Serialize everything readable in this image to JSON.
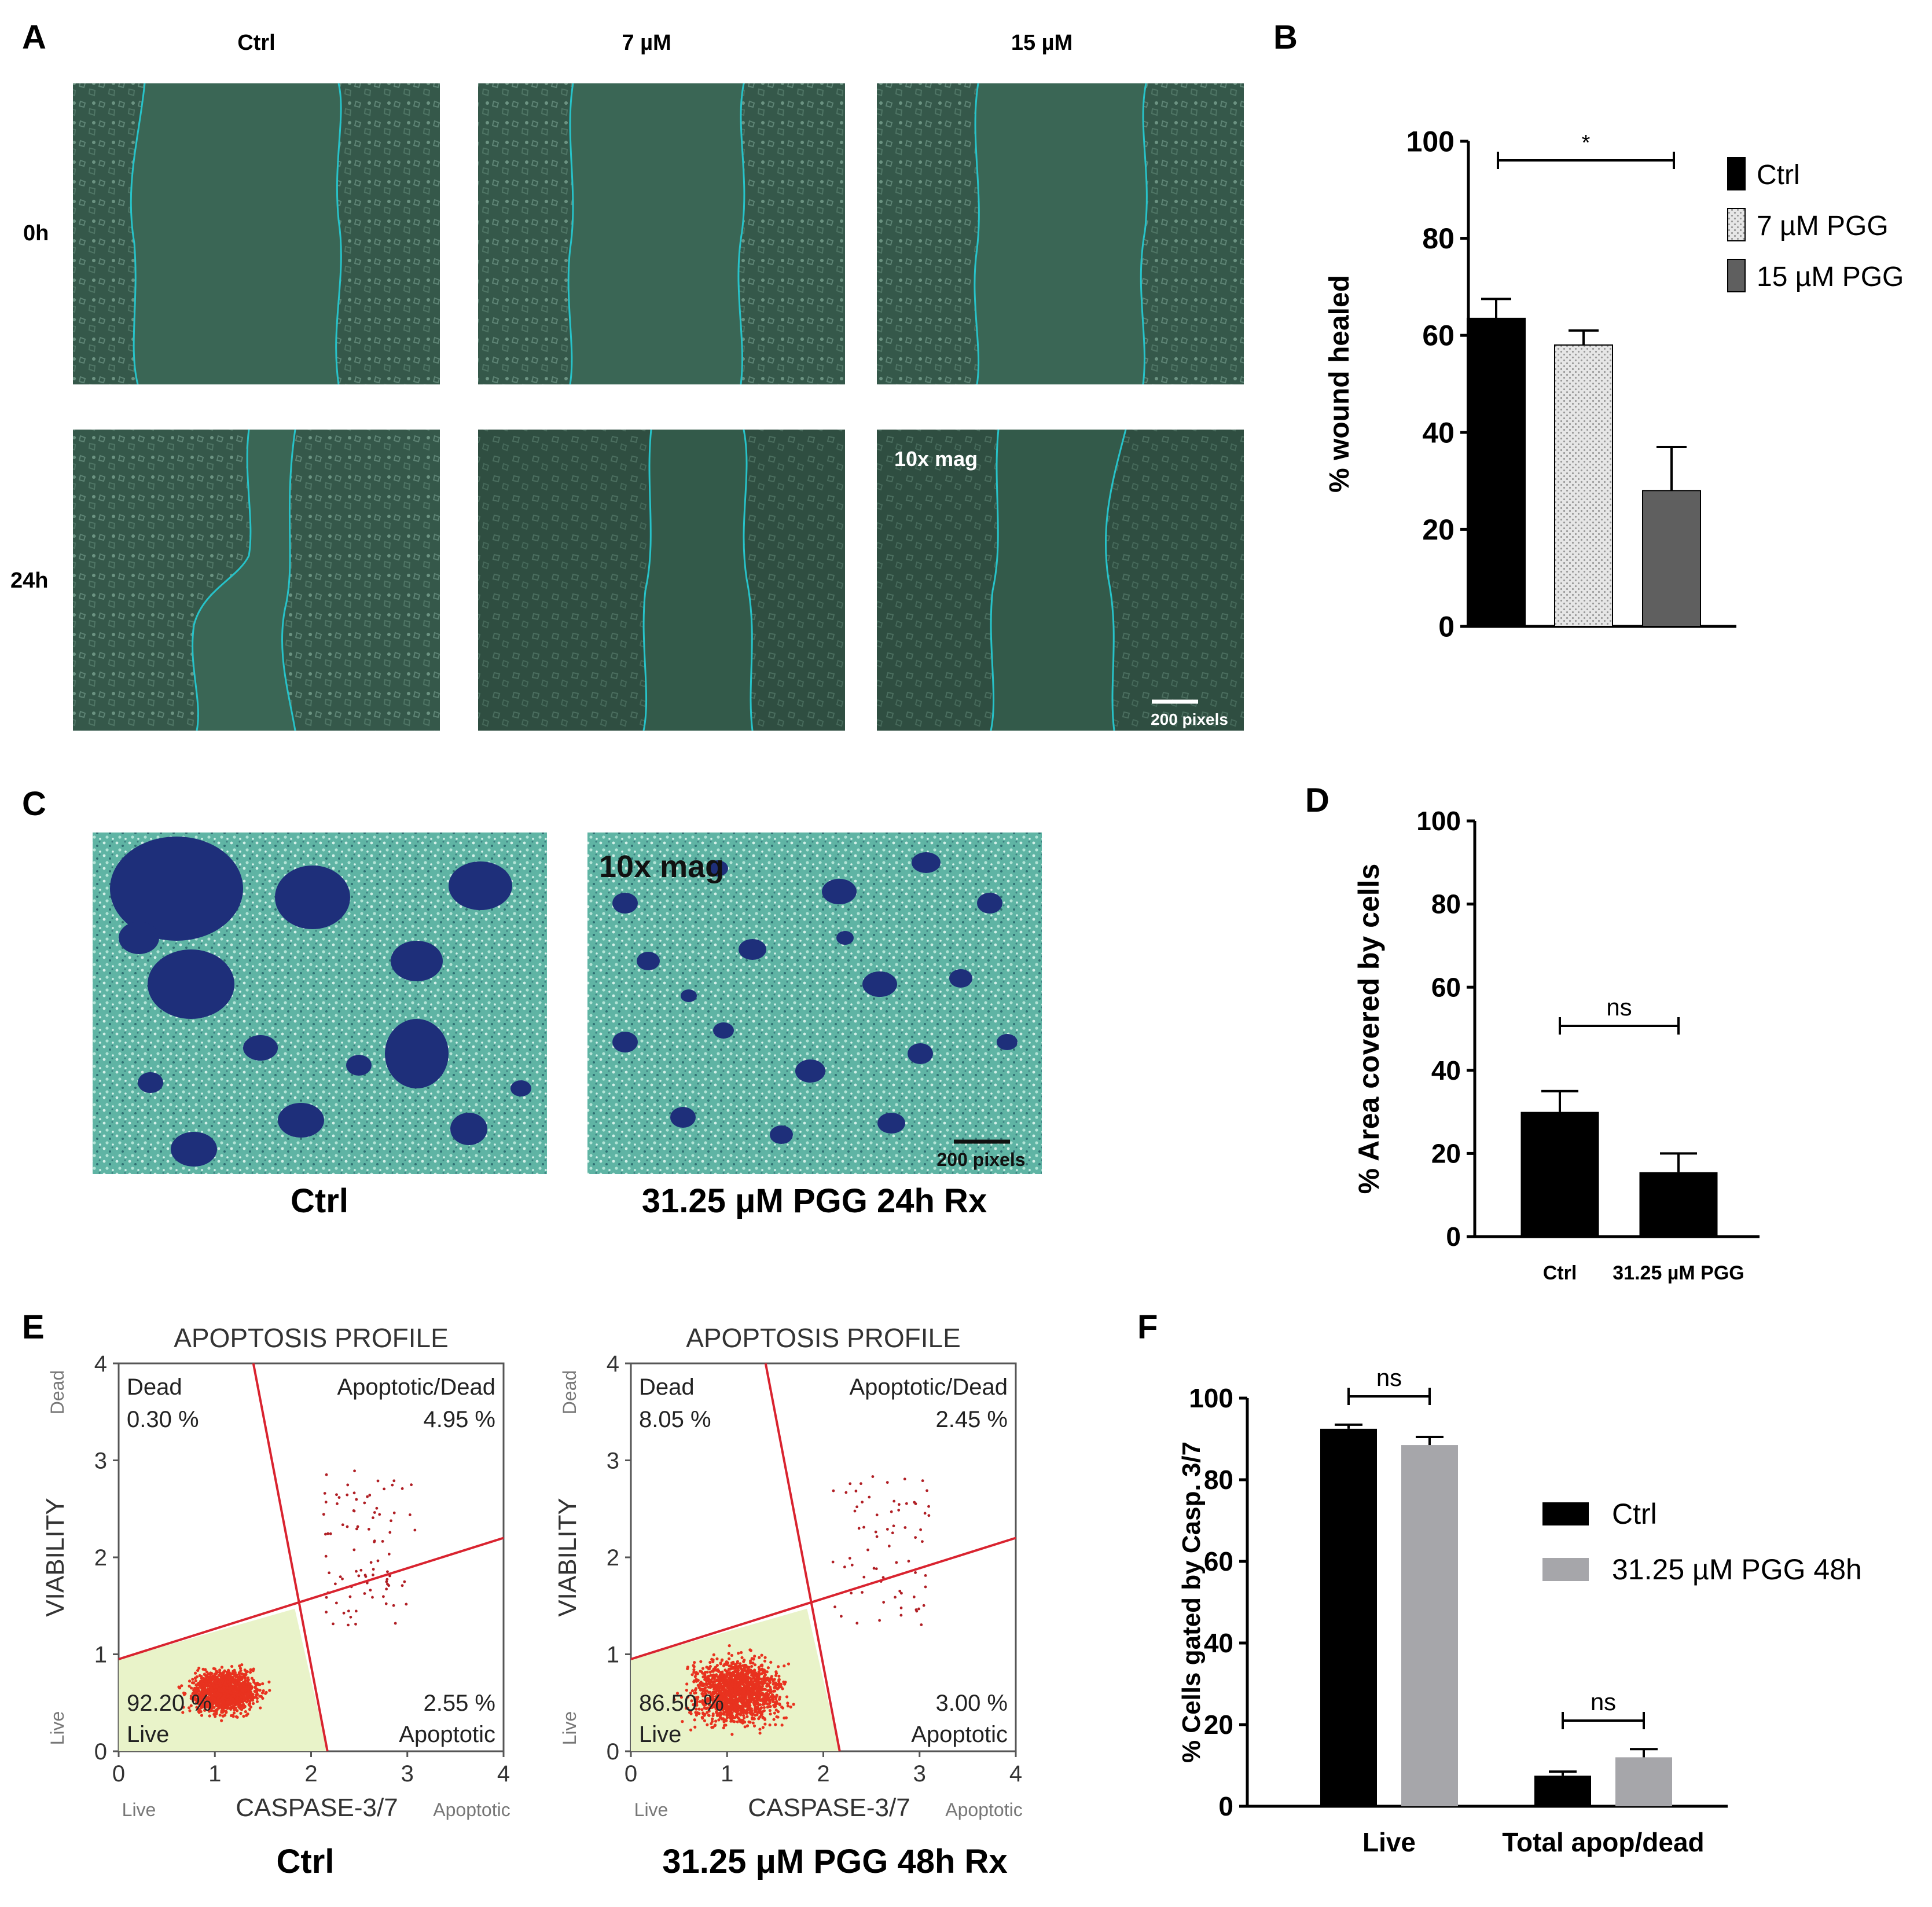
{
  "panels": {
    "A": {
      "letter": "A",
      "col_labels": [
        "Ctrl",
        "7 µM",
        "15 µM"
      ],
      "row_labels": [
        "0h",
        "24h"
      ],
      "mag_label": "10x mag",
      "scale_label": "200 pixels"
    },
    "C": {
      "letter": "C",
      "captions": [
        "Ctrl",
        "31.25 μM PGG 24h Rx"
      ],
      "mag_label": "10x mag",
      "scale_label": "200 pixels"
    },
    "E": {
      "letter": "E",
      "profile_title": "APOPTOSIS PROFILE",
      "xlabel": "CASPASE-3/7",
      "ylabel": "VIABILITY",
      "x_end_labels": [
        "Live",
        "Apoptotic"
      ],
      "y_end_labels": [
        "Live",
        "Dead"
      ],
      "ticks": [
        "0",
        "1",
        "2",
        "3",
        "4"
      ],
      "plots": [
        {
          "caption": "Ctrl",
          "dead_label": "Dead",
          "dead_pct": "0.30 %",
          "apopdead_label": "Apoptotic/Dead",
          "apopdead_pct": "4.95 %",
          "live_pct": "92.20 %",
          "live_label": "Live",
          "apop_pct": "2.55 %",
          "apop_label": "Apoptotic"
        },
        {
          "caption": "31.25 μM PGG 48h Rx",
          "dead_label": "Dead",
          "dead_pct": "8.05 %",
          "apopdead_label": "Apoptotic/Dead",
          "apopdead_pct": "2.45 %",
          "live_pct": "86.50 %",
          "live_label": "Live",
          "apop_pct": "3.00 %",
          "apop_label": "Apoptotic"
        }
      ]
    }
  },
  "chart_data": [
    {
      "panel": "B",
      "letter": "B",
      "type": "bar",
      "categories": [
        "Ctrl",
        "7 µM PGG",
        "15 µM PGG"
      ],
      "values": [
        63.5,
        58,
        28
      ],
      "errors": [
        4,
        3,
        9
      ],
      "colors": [
        "#000000",
        "#cfcfcf",
        "#5f5f5f"
      ],
      "ylabel": "% wound healed",
      "ylim": [
        0,
        100
      ],
      "yticks": [
        "0",
        "20",
        "40",
        "60",
        "80",
        "100"
      ],
      "legend": [
        "Ctrl",
        "7 µM PGG",
        "15 µM PGG"
      ],
      "legend_position": "right",
      "significance": [
        {
          "from": 0,
          "to": 2,
          "label": "*"
        }
      ]
    },
    {
      "panel": "D",
      "letter": "D",
      "type": "bar",
      "categories": [
        "Ctrl",
        "31.25 µM PGG"
      ],
      "values": [
        30,
        15.5
      ],
      "errors": [
        5,
        4.5
      ],
      "colors": [
        "#000000",
        "#000000"
      ],
      "ylabel": "% Area covered by cells",
      "ylim": [
        0,
        100
      ],
      "yticks": [
        "0",
        "20",
        "40",
        "60",
        "80",
        "100"
      ],
      "significance": [
        {
          "from": 0,
          "to": 1,
          "label": "ns"
        }
      ]
    },
    {
      "panel": "F",
      "letter": "F",
      "type": "bar",
      "categories": [
        "Live",
        "Total apop/dead"
      ],
      "series": [
        {
          "name": "Ctrl",
          "values": [
            92.5,
            7.5
          ],
          "errors": [
            1,
            1
          ],
          "color": "#000000"
        },
        {
          "name": "31.25 µM PGG 48h",
          "values": [
            88.5,
            12
          ],
          "errors": [
            2,
            2
          ],
          "color": "#a6a6aa"
        }
      ],
      "ylabel": "% Cells gated by Casp. 3/7",
      "ylim": [
        0,
        100
      ],
      "yticks": [
        "0",
        "20",
        "40",
        "60",
        "80",
        "100"
      ],
      "legend_position": "right",
      "significance": [
        {
          "group": 0,
          "label": "ns"
        },
        {
          "group": 1,
          "label": "ns"
        }
      ]
    }
  ]
}
